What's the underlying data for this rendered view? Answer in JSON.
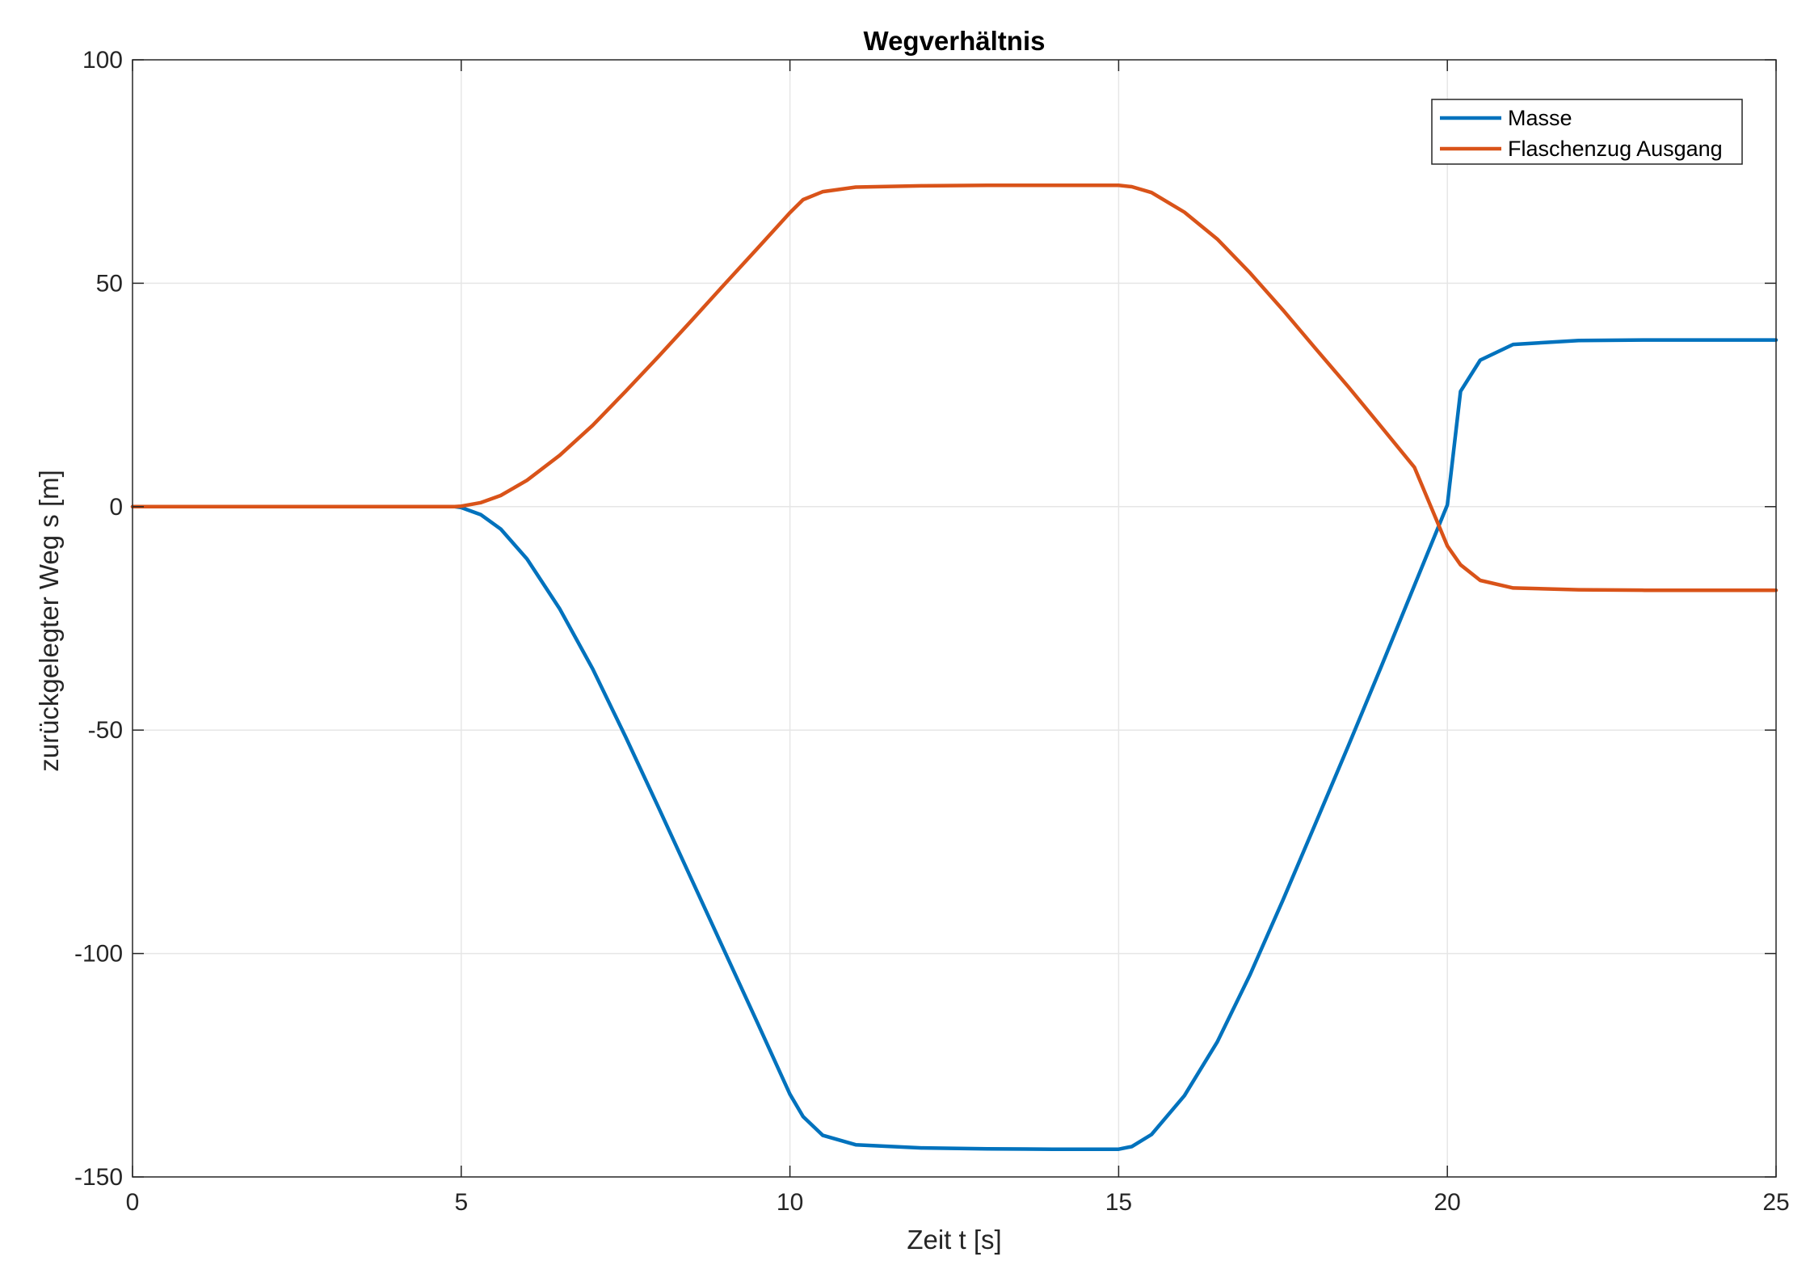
{
  "chart_data": {
    "type": "line",
    "title": "Wegverhältnis",
    "xlabel": "Zeit t [s]",
    "ylabel": "zurückgelegter Weg s [m]",
    "xlim": [
      0,
      25
    ],
    "ylim": [
      -150,
      100
    ],
    "xticks": [
      0,
      5,
      10,
      15,
      20,
      25
    ],
    "yticks": [
      -150,
      -100,
      -50,
      0,
      50,
      100
    ],
    "grid": true,
    "legend_position": "top-right",
    "series": [
      {
        "name": "Masse",
        "color": "#0072BD",
        "x": [
          0,
          4.9,
          5.0,
          5.3,
          5.6,
          6.0,
          6.5,
          7.0,
          7.5,
          8.0,
          8.5,
          9.0,
          9.5,
          10.0,
          10.2,
          10.5,
          11.0,
          12.0,
          13.0,
          14.0,
          15.0,
          15.2,
          15.5,
          16.0,
          16.5,
          17.0,
          17.5,
          18.0,
          18.5,
          19.0,
          19.5,
          20.0,
          20.2,
          20.5,
          21.0,
          22.0,
          23.0,
          24.0,
          25.0
        ],
        "values": [
          0,
          0,
          -0.2,
          -1.8,
          -5,
          -11.7,
          -22.9,
          -36.3,
          -51.5,
          -67.3,
          -83.3,
          -99.3,
          -115.3,
          -131.5,
          -136.5,
          -140.7,
          -142.8,
          -143.5,
          -143.7,
          -143.8,
          -143.8,
          -143.2,
          -140.5,
          -131.8,
          -119.8,
          -104.7,
          -88.0,
          -70.7,
          -53.3,
          -35.6,
          -17.6,
          0.4,
          25.8,
          32.8,
          36.3,
          37.2,
          37.3,
          37.3,
          37.3
        ]
      },
      {
        "name": "Flaschenzug Ausgang",
        "color": "#D95319",
        "x": [
          0,
          4.9,
          5.0,
          5.3,
          5.6,
          6.0,
          6.5,
          7.0,
          7.5,
          8.0,
          8.5,
          9.0,
          9.5,
          10.0,
          10.2,
          10.5,
          11.0,
          12.0,
          13.0,
          14.0,
          15.0,
          15.2,
          15.5,
          16.0,
          16.5,
          17.0,
          17.5,
          18.0,
          18.5,
          19.0,
          19.5,
          20.0,
          20.2,
          20.5,
          21.0,
          22.0,
          23.0,
          24.0,
          25.0
        ],
        "values": [
          0,
          0,
          0.1,
          0.9,
          2.5,
          5.9,
          11.5,
          18.2,
          25.8,
          33.6,
          41.6,
          49.7,
          57.7,
          65.8,
          68.7,
          70.5,
          71.5,
          71.8,
          71.9,
          71.9,
          71.9,
          71.6,
          70.3,
          65.9,
          59.9,
          52.3,
          44.0,
          35.3,
          26.7,
          17.8,
          8.8,
          -8.8,
          -13.0,
          -16.5,
          -18.2,
          -18.6,
          -18.7,
          -18.7,
          -18.7
        ]
      }
    ]
  }
}
